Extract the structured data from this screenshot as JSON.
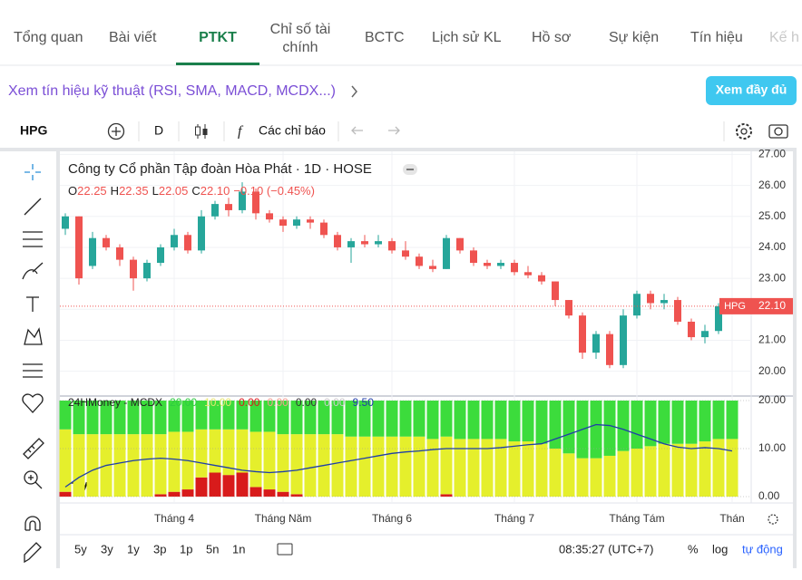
{
  "tabs": [
    "Tổng quan",
    "Bài viết",
    "PTKT",
    "Chỉ số tài chính",
    "BCTC",
    "Lịch sử KL",
    "Hồ sơ",
    "Sự kiện",
    "Tín hiệu",
    "Kế h"
  ],
  "signal_link": "Xem tín hiệu kỹ thuật (RSI, SMA, MACD, MCDX...)",
  "full_button": "Xem đầy đủ",
  "toolbar": {
    "symbol": "HPG",
    "interval": "D",
    "indicators": "Các chỉ báo"
  },
  "chart_data": {
    "type": "candlestick",
    "title": "Công ty Cổ phần Tập đoàn Hòa Phát · 1D · HOSE",
    "legend": {
      "o_label": "O",
      "o": "22.25",
      "h_label": "H",
      "h": "22.35",
      "l_label": "L",
      "l": "22.05",
      "c_label": "C",
      "c": "22.10",
      "change": "−0.10 (−0.45%)"
    },
    "symbol_tag": "HPG",
    "last_price": {
      "value": 22.1,
      "label": "22.10"
    },
    "up_color": "#26a69a",
    "down_color": "#ef5350",
    "ylim": [
      19.2,
      27.1
    ],
    "yticks": [
      {
        "value": 20,
        "label": "20.00"
      },
      {
        "value": 21,
        "label": "21.00"
      },
      {
        "value": 22,
        "label": "22.00"
      },
      {
        "value": 23,
        "label": "23.00"
      },
      {
        "value": 24,
        "label": "24.00"
      },
      {
        "value": 25,
        "label": "25.00"
      },
      {
        "value": 26,
        "label": "26.00"
      },
      {
        "value": 27,
        "label": "27.00"
      }
    ],
    "categories": [
      null,
      null,
      null,
      null,
      null,
      null,
      null,
      null,
      "Tháng 4",
      null,
      null,
      null,
      null,
      null,
      null,
      null,
      "Tháng Năm",
      null,
      null,
      null,
      null,
      null,
      null,
      null,
      "Tháng 6",
      null,
      null,
      null,
      null,
      null,
      null,
      null,
      null,
      "Tháng 7",
      null,
      null,
      null,
      null,
      null,
      null,
      null,
      null,
      "Tháng Tám",
      null,
      null,
      null,
      null,
      null,
      null,
      "Thán"
    ],
    "candles": [
      [
        24.6,
        25.1,
        24.4,
        25.0
      ],
      [
        25.0,
        25.0,
        22.8,
        23.0
      ],
      [
        23.4,
        24.5,
        23.3,
        24.3
      ],
      [
        24.3,
        24.4,
        23.9,
        24.0
      ],
      [
        24.0,
        24.1,
        23.4,
        23.6
      ],
      [
        23.6,
        23.7,
        22.6,
        23.0
      ],
      [
        23.0,
        23.6,
        22.9,
        23.5
      ],
      [
        23.5,
        24.1,
        23.4,
        24.0
      ],
      [
        24.0,
        24.6,
        23.9,
        24.4
      ],
      [
        24.4,
        24.5,
        23.8,
        23.9
      ],
      [
        23.9,
        25.2,
        23.8,
        25.0
      ],
      [
        25.0,
        25.5,
        24.9,
        25.4
      ],
      [
        25.4,
        25.6,
        25.0,
        25.2
      ],
      [
        25.2,
        26.1,
        25.1,
        25.8
      ],
      [
        25.8,
        25.9,
        24.9,
        25.1
      ],
      [
        25.1,
        25.2,
        24.8,
        24.9
      ],
      [
        24.9,
        25.0,
        24.5,
        24.7
      ],
      [
        24.7,
        25.0,
        24.6,
        24.9
      ],
      [
        24.9,
        25.0,
        24.6,
        24.8
      ],
      [
        24.8,
        24.9,
        24.3,
        24.4
      ],
      [
        24.4,
        24.5,
        23.9,
        24.0
      ],
      [
        24.0,
        24.3,
        23.5,
        24.2
      ],
      [
        24.2,
        24.4,
        24.0,
        24.1
      ],
      [
        24.1,
        24.4,
        24.0,
        24.2
      ],
      [
        24.2,
        24.3,
        23.8,
        23.9
      ],
      [
        23.9,
        24.2,
        23.6,
        23.7
      ],
      [
        23.7,
        23.8,
        23.3,
        23.4
      ],
      [
        23.4,
        23.6,
        23.2,
        23.3
      ],
      [
        23.3,
        24.4,
        23.3,
        24.3
      ],
      [
        24.3,
        24.3,
        23.8,
        23.9
      ],
      [
        23.9,
        24.0,
        23.4,
        23.5
      ],
      [
        23.5,
        23.6,
        23.3,
        23.4
      ],
      [
        23.4,
        23.6,
        23.3,
        23.5
      ],
      [
        23.5,
        23.6,
        23.1,
        23.2
      ],
      [
        23.2,
        23.4,
        23.0,
        23.1
      ],
      [
        23.1,
        23.2,
        22.8,
        22.9
      ],
      [
        22.9,
        22.9,
        22.1,
        22.3
      ],
      [
        22.3,
        22.3,
        21.7,
        21.8
      ],
      [
        21.8,
        21.9,
        20.4,
        20.6
      ],
      [
        20.6,
        21.3,
        20.4,
        21.2
      ],
      [
        21.2,
        21.3,
        20.1,
        20.2
      ],
      [
        20.2,
        22.0,
        20.1,
        21.8
      ],
      [
        21.8,
        22.6,
        21.7,
        22.5
      ],
      [
        22.5,
        22.6,
        22.0,
        22.2
      ],
      [
        22.2,
        22.5,
        22.0,
        22.3
      ],
      [
        22.3,
        22.4,
        21.5,
        21.6
      ],
      [
        21.6,
        21.7,
        21.0,
        21.1
      ],
      [
        21.1,
        21.5,
        20.9,
        21.3
      ],
      [
        21.3,
        22.2,
        21.2,
        22.1
      ],
      [
        22.25,
        22.35,
        22.05,
        22.1
      ]
    ],
    "mcdx": {
      "name": "24HMoney - MCDX",
      "legend_values": [
        {
          "text": "20.00",
          "color": "#2ecc40"
        },
        {
          "text": "10.00",
          "color": "#e8e870"
        },
        {
          "text": "0.00",
          "color": "#d81b1b"
        },
        {
          "text": "0.00",
          "color": "#f4a090"
        },
        {
          "text": "0.00",
          "color": "#333333"
        },
        {
          "text": "0.00",
          "color": "#cccccc"
        },
        {
          "text": "9.50",
          "color": "#1f3fa8"
        }
      ],
      "ylim": [
        0,
        20
      ],
      "yticks": [
        {
          "value": 0,
          "label": "0.00"
        },
        {
          "value": 10,
          "label": "10.00"
        },
        {
          "value": 20,
          "label": "20.00"
        }
      ],
      "series": [
        {
          "name": "red",
          "color": "#d81b1b",
          "values": [
            1,
            0,
            0,
            0,
            0,
            0,
            0,
            0.5,
            1,
            1.5,
            4,
            5,
            4.5,
            5,
            2,
            1.5,
            1,
            0.5,
            0,
            0,
            0,
            0,
            0,
            0,
            0,
            0,
            0,
            0,
            0.5,
            0,
            0,
            0,
            0,
            0,
            0,
            0,
            0,
            0,
            0,
            0,
            0,
            0,
            0,
            0,
            0,
            0,
            0,
            0,
            0,
            0
          ]
        },
        {
          "name": "yellow",
          "color": "#e5ef2c",
          "values": [
            13,
            13,
            13,
            13,
            13,
            13,
            13,
            12.5,
            12.5,
            12,
            10,
            9,
            9.5,
            9,
            11.5,
            12,
            12,
            12.5,
            13,
            13,
            13,
            12.5,
            12.5,
            12.5,
            12.5,
            12.5,
            12.5,
            12,
            12,
            12,
            12,
            12,
            12,
            11.5,
            11.5,
            11,
            10,
            9,
            8,
            8,
            8.5,
            9.5,
            10,
            10.5,
            11,
            11,
            11,
            11.5,
            12,
            12
          ]
        },
        {
          "name": "green",
          "color": "#3cdc3c",
          "values": [
            6,
            7,
            7,
            7,
            7,
            7,
            7,
            7,
            6.5,
            6.5,
            6,
            6,
            6,
            6,
            6.5,
            6.5,
            7,
            7,
            7,
            7,
            7,
            7.5,
            7.5,
            7.5,
            7.5,
            7.5,
            7.5,
            8,
            7.5,
            8,
            8,
            8,
            8,
            8.5,
            8.5,
            9,
            10,
            11,
            12,
            12,
            11.5,
            10.5,
            10,
            9.5,
            9,
            9,
            9,
            8.5,
            8,
            8
          ]
        }
      ],
      "line": {
        "color": "#1f3fa8",
        "values": [
          2,
          4,
          5.5,
          6.5,
          7,
          7.5,
          7.8,
          8,
          7.8,
          7.5,
          7,
          6.5,
          6,
          5.5,
          5.2,
          5,
          5.2,
          5.5,
          6,
          6.5,
          7,
          7.5,
          8,
          8.5,
          9,
          9.3,
          9.5,
          9.8,
          10,
          10,
          10,
          10,
          10.2,
          10.5,
          10.8,
          11,
          12,
          13,
          14,
          15,
          14.8,
          14,
          13,
          12,
          11,
          10.3,
          10,
          10.2,
          10,
          9.5
        ]
      }
    }
  },
  "bottom_bar": {
    "ranges": [
      "5y",
      "3y",
      "1y",
      "3p",
      "1p",
      "5n",
      "1n"
    ],
    "time": "08:35:27 (UTC+7)",
    "percent": "%",
    "log": "log",
    "auto": "tự động"
  }
}
